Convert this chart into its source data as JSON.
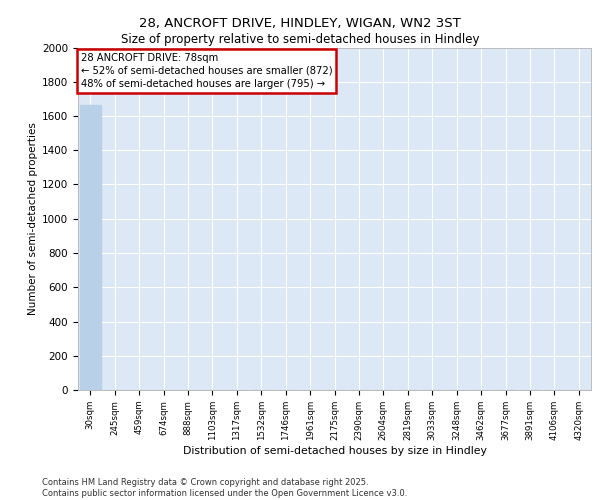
{
  "title_line1": "28, ANCROFT DRIVE, HINDLEY, WIGAN, WN2 3ST",
  "title_line2": "Size of property relative to semi-detached houses in Hindley",
  "xlabel": "Distribution of semi-detached houses by size in Hindley",
  "ylabel": "Number of semi-detached properties",
  "categories": [
    "30sqm",
    "245sqm",
    "459sqm",
    "674sqm",
    "888sqm",
    "1103sqm",
    "1317sqm",
    "1532sqm",
    "1746sqm",
    "1961sqm",
    "2175sqm",
    "2390sqm",
    "2604sqm",
    "2819sqm",
    "3033sqm",
    "3248sqm",
    "3462sqm",
    "3677sqm",
    "3891sqm",
    "4106sqm",
    "4320sqm"
  ],
  "values": [
    1667,
    2,
    1,
    1,
    0,
    0,
    0,
    0,
    0,
    0,
    0,
    0,
    0,
    0,
    0,
    0,
    0,
    0,
    0,
    0,
    0
  ],
  "bar_color": "#b8d0e8",
  "ylim": [
    0,
    2000
  ],
  "yticks": [
    0,
    200,
    400,
    600,
    800,
    1000,
    1200,
    1400,
    1600,
    1800,
    2000
  ],
  "annotation_title": "28 ANCROFT DRIVE: 78sqm",
  "annotation_line1": "← 52% of semi-detached houses are smaller (872)",
  "annotation_line2": "48% of semi-detached houses are larger (795) →",
  "annotation_box_color": "#cc0000",
  "background_color": "#dce8f5",
  "grid_color": "#ffffff",
  "footer_line1": "Contains HM Land Registry data © Crown copyright and database right 2025.",
  "footer_line2": "Contains public sector information licensed under the Open Government Licence v3.0."
}
